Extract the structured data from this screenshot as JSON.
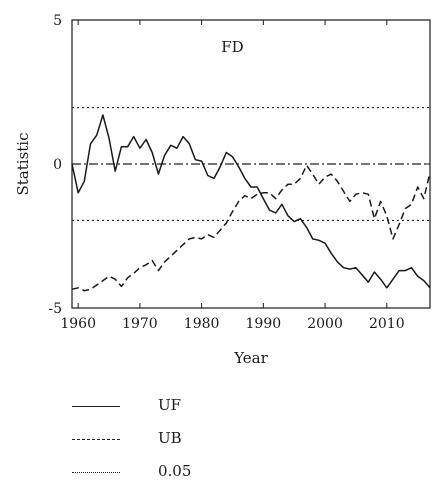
{
  "chart_data": {
    "type": "line",
    "title": "FD",
    "xlabel": "Year",
    "ylabel": "Statistic",
    "xlim": [
      1959,
      2017
    ],
    "ylim": [
      -5,
      5
    ],
    "xticks": [
      1960,
      1970,
      1980,
      1990,
      2000,
      2010
    ],
    "yticks": [
      -5,
      0,
      5
    ],
    "grid": false,
    "legend_position": "below",
    "reference_lines": [
      {
        "series": "0.05",
        "y": 1.96
      },
      {
        "series": "0.05",
        "y": -1.96
      },
      {
        "series": "zero",
        "y": 0
      }
    ],
    "series": [
      {
        "name": "UF",
        "style": "solid",
        "x": [
          1959,
          1960,
          1961,
          1962,
          1963,
          1964,
          1965,
          1966,
          1967,
          1968,
          1969,
          1970,
          1971,
          1972,
          1973,
          1974,
          1975,
          1976,
          1977,
          1978,
          1979,
          1980,
          1981,
          1982,
          1983,
          1984,
          1985,
          1986,
          1987,
          1988,
          1989,
          1990,
          1991,
          1992,
          1993,
          1994,
          1995,
          1996,
          1997,
          1998,
          1999,
          2000,
          2001,
          2002,
          2003,
          2004,
          2005,
          2006,
          2007,
          2008,
          2009,
          2010,
          2011,
          2012,
          2013,
          2014,
          2015,
          2016,
          2017
        ],
        "values": [
          0,
          -1.0,
          -0.6,
          0.7,
          1.0,
          1.7,
          0.9,
          -0.25,
          0.6,
          0.6,
          0.95,
          0.55,
          0.85,
          0.4,
          -0.35,
          0.3,
          0.65,
          0.55,
          0.95,
          0.7,
          0.15,
          0.1,
          -0.4,
          -0.5,
          -0.1,
          0.4,
          0.25,
          -0.1,
          -0.5,
          -0.8,
          -0.8,
          -1.2,
          -1.6,
          -1.7,
          -1.4,
          -1.8,
          -2.0,
          -1.9,
          -2.2,
          -2.6,
          -2.65,
          -2.75,
          -3.1,
          -3.4,
          -3.6,
          -3.65,
          -3.6,
          -3.85,
          -4.1,
          -3.75,
          -4.0,
          -4.3,
          -4.0,
          -3.7,
          -3.7,
          -3.6,
          -3.9,
          -4.05,
          -4.3
        ]
      },
      {
        "name": "UB",
        "style": "dashed",
        "x": [
          1959,
          1960,
          1961,
          1962,
          1963,
          1964,
          1965,
          1966,
          1967,
          1968,
          1969,
          1970,
          1971,
          1972,
          1973,
          1974,
          1975,
          1976,
          1977,
          1978,
          1979,
          1980,
          1981,
          1982,
          1983,
          1984,
          1985,
          1986,
          1987,
          1988,
          1989,
          1990,
          1991,
          1992,
          1993,
          1994,
          1995,
          1996,
          1997,
          1998,
          1999,
          2000,
          2001,
          2002,
          2003,
          2004,
          2005,
          2006,
          2007,
          2008,
          2009,
          2010,
          2011,
          2012,
          2013,
          2014,
          2015,
          2016,
          2017
        ],
        "values": [
          -4.35,
          -4.3,
          -4.4,
          -4.35,
          -4.2,
          -4.05,
          -3.9,
          -4.0,
          -4.25,
          -3.95,
          -3.8,
          -3.6,
          -3.5,
          -3.35,
          -3.7,
          -3.4,
          -3.2,
          -3.0,
          -2.8,
          -2.6,
          -2.55,
          -2.6,
          -2.45,
          -2.55,
          -2.3,
          -2.05,
          -1.65,
          -1.3,
          -1.1,
          -1.2,
          -1.05,
          -1.0,
          -1.0,
          -1.2,
          -0.9,
          -0.7,
          -0.7,
          -0.5,
          -0.05,
          -0.35,
          -0.7,
          -0.45,
          -0.35,
          -0.6,
          -0.95,
          -1.3,
          -1.05,
          -1.0,
          -1.05,
          -1.9,
          -1.3,
          -1.8,
          -2.6,
          -2.1,
          -1.55,
          -1.4,
          -0.8,
          -1.2,
          -0.3
        ]
      },
      {
        "name": "0.05",
        "style": "dotted"
      }
    ]
  },
  "legend": {
    "items": [
      {
        "label": "UF",
        "style": "solid"
      },
      {
        "label": "UB",
        "style": "dashed"
      },
      {
        "label": "0.05",
        "style": "dotted"
      }
    ]
  }
}
